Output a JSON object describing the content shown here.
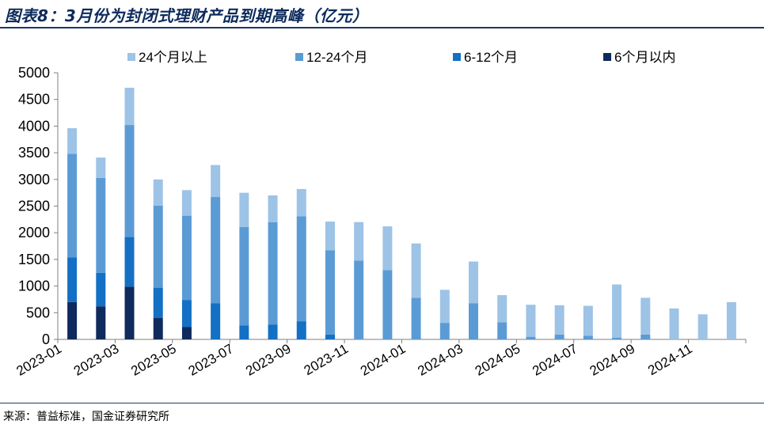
{
  "title": "图表8：3月份为封闭式理财产品到期高峰（亿元）",
  "source": "来源：普益标准，国金证券研究所",
  "chart_data": {
    "type": "bar",
    "stacked": true,
    "legend_position": "top",
    "grid": false,
    "ylim": [
      0,
      5000
    ],
    "yticks": [
      0,
      500,
      1000,
      1500,
      2000,
      2500,
      3000,
      3500,
      4000,
      4500,
      5000
    ],
    "xtick_labels": [
      "2023-01",
      "2023-03",
      "2023-05",
      "2023-07",
      "2023-09",
      "2023-11",
      "2024-01",
      "2024-03",
      "2024-05",
      "2024-07",
      "2024-09",
      "2024-11"
    ],
    "categories": [
      "2023-01",
      "2023-02",
      "2023-03",
      "2023-04",
      "2023-05",
      "2023-06",
      "2023-07",
      "2023-08",
      "2023-09",
      "2023-10",
      "2023-11",
      "2023-12",
      "2024-01",
      "2024-02",
      "2024-03",
      "2024-04",
      "2024-05",
      "2024-06",
      "2024-07",
      "2024-08",
      "2024-09",
      "2024-10",
      "2024-11",
      "2024-12"
    ],
    "series": [
      {
        "name": "6个月以内",
        "color": "#0f2a5c",
        "values": [
          700,
          620,
          990,
          400,
          230,
          0,
          0,
          0,
          0,
          0,
          0,
          0,
          0,
          0,
          0,
          0,
          0,
          0,
          0,
          0,
          0,
          0,
          0,
          0
        ]
      },
      {
        "name": "6-12个月",
        "color": "#1370c4",
        "values": [
          840,
          630,
          930,
          570,
          510,
          680,
          260,
          280,
          340,
          90,
          0,
          0,
          0,
          0,
          0,
          0,
          0,
          0,
          0,
          0,
          0,
          0,
          0,
          0
        ]
      },
      {
        "name": "12-24个月",
        "color": "#5b9bd5",
        "values": [
          1940,
          1780,
          2100,
          1540,
          1580,
          1990,
          1850,
          1920,
          1970,
          1580,
          1480,
          1300,
          780,
          310,
          680,
          320,
          50,
          90,
          70,
          30,
          90,
          0,
          0,
          0
        ]
      },
      {
        "name": "24个月以上",
        "color": "#9dc3e6",
        "values": [
          480,
          380,
          700,
          490,
          480,
          600,
          640,
          500,
          510,
          540,
          720,
          820,
          1020,
          620,
          780,
          510,
          600,
          550,
          560,
          1000,
          690,
          580,
          470,
          700
        ]
      }
    ]
  }
}
